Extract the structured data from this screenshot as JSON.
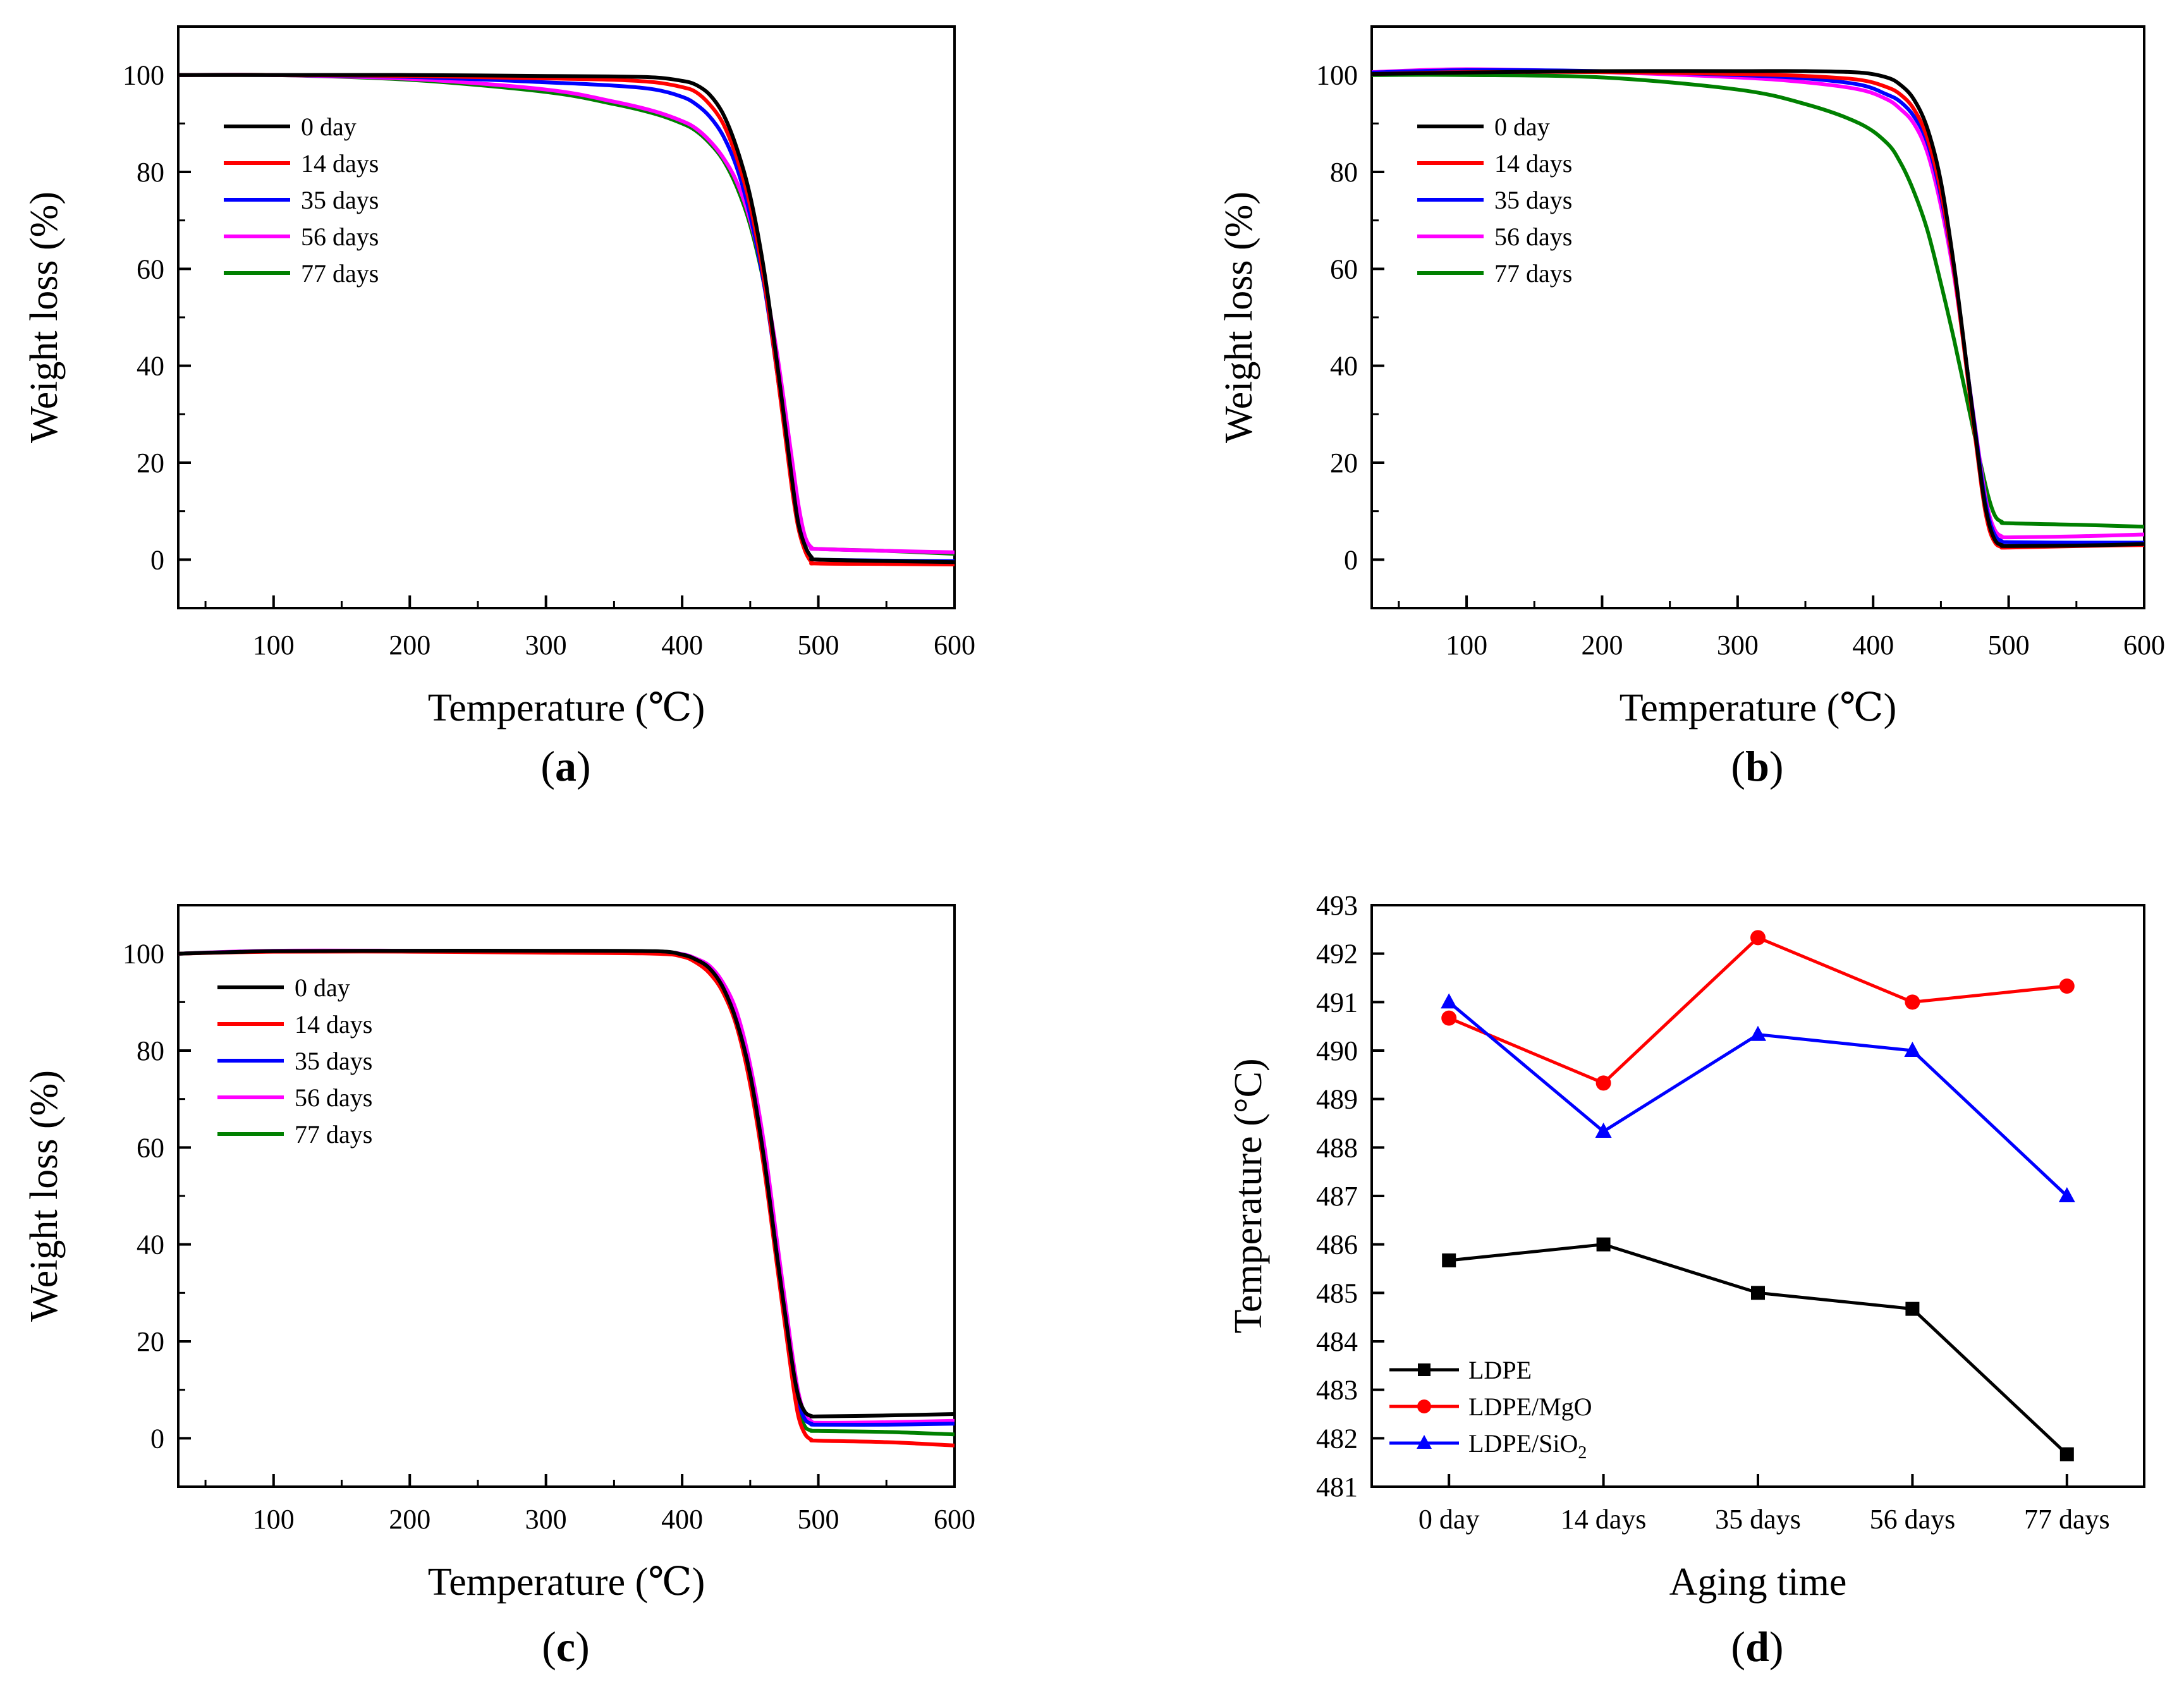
{
  "figure": {
    "panels": [
      "a",
      "b",
      "c",
      "d"
    ]
  },
  "colors": {
    "0 day": "#000000",
    "14 days": "#ff0000",
    "35 days": "#0000ff",
    "56 days": "#ff00ff",
    "77 days": "#008000",
    "LDPE": "#000000",
    "LDPE/MgO": "#ff0000",
    "LDPE/SiO2": "#0000ff"
  },
  "chart_data": [
    {
      "id": "a",
      "panel_label": "a",
      "type": "line",
      "title": "",
      "xlabel": "Temperature (℃)",
      "ylabel": "Weight loss (%)",
      "xlim": [
        30,
        600
      ],
      "ylim": [
        -10,
        110
      ],
      "xticks": [
        100,
        200,
        300,
        400,
        500,
        600
      ],
      "yticks": [
        0,
        20,
        40,
        60,
        80,
        100
      ],
      "legend": [
        "0 day",
        "14 days",
        "35 days",
        "56 days",
        "77 days"
      ],
      "legend_position": "top-left",
      "series": [
        {
          "name": "0 day",
          "x": [
            30,
            100,
            200,
            300,
            350,
            380,
            400,
            410,
            420,
            430,
            440,
            450,
            460,
            470,
            480,
            485,
            490,
            495,
            500,
            550,
            600
          ],
          "y": [
            100,
            100,
            100,
            99.8,
            99.7,
            99.5,
            98.8,
            98,
            96,
            92,
            85,
            75,
            60,
            40,
            18,
            8,
            3,
            0.5,
            0,
            -0.3,
            -0.5
          ]
        },
        {
          "name": "14 days",
          "x": [
            30,
            100,
            200,
            300,
            350,
            380,
            400,
            410,
            420,
            430,
            440,
            450,
            460,
            470,
            480,
            485,
            490,
            495,
            500,
            550,
            600
          ],
          "y": [
            100,
            100,
            99.8,
            99.3,
            99,
            98.5,
            97.5,
            96.5,
            94,
            90,
            83,
            73,
            58,
            38,
            16,
            7,
            2,
            -0.5,
            -0.8,
            -0.9,
            -1
          ]
        },
        {
          "name": "35 days",
          "x": [
            30,
            100,
            200,
            300,
            350,
            380,
            400,
            410,
            420,
            430,
            440,
            450,
            460,
            470,
            480,
            485,
            490,
            495,
            500,
            550,
            600
          ],
          "y": [
            100,
            100,
            99.6,
            98.5,
            97.8,
            97,
            95.5,
            94,
            91.5,
            87.5,
            81,
            71,
            57,
            38,
            17,
            8,
            3,
            0.5,
            0,
            -0.2,
            -0.3
          ]
        },
        {
          "name": "56 days",
          "x": [
            30,
            100,
            200,
            300,
            350,
            380,
            400,
            410,
            420,
            430,
            440,
            450,
            460,
            470,
            480,
            485,
            490,
            495,
            500,
            550,
            600
          ],
          "y": [
            100,
            100,
            99.2,
            97,
            94.5,
            92.5,
            90.5,
            89,
            86.5,
            83,
            78,
            70,
            58,
            42,
            22,
            12,
            5,
            2.5,
            2.2,
            1.8,
            1.5
          ]
        },
        {
          "name": "77 days",
          "x": [
            30,
            100,
            200,
            300,
            350,
            380,
            400,
            410,
            420,
            430,
            440,
            450,
            460,
            470,
            480,
            485,
            490,
            495,
            500,
            550,
            600
          ],
          "y": [
            100,
            100,
            99,
            96.5,
            94,
            92,
            90,
            88.5,
            86,
            82.5,
            77,
            69,
            57,
            40,
            20,
            10,
            4.5,
            2.5,
            2.2,
            1.8,
            1.2
          ]
        }
      ]
    },
    {
      "id": "b",
      "panel_label": "b",
      "type": "line",
      "title": "",
      "xlabel": "Temperature (℃)",
      "ylabel": "Weight loss (%)",
      "xlim": [
        30,
        600
      ],
      "ylim": [
        -10,
        110
      ],
      "xticks": [
        100,
        200,
        300,
        400,
        500,
        600
      ],
      "yticks": [
        0,
        20,
        40,
        60,
        80,
        100
      ],
      "legend": [
        "0 day",
        "14 days",
        "35 days",
        "56 days",
        "77 days"
      ],
      "legend_position": "top-left",
      "series": [
        {
          "name": "0 day",
          "x": [
            30,
            100,
            200,
            300,
            350,
            390,
            410,
            420,
            430,
            440,
            450,
            460,
            470,
            480,
            485,
            490,
            495,
            500,
            550,
            600
          ],
          "y": [
            100.2,
            100.5,
            100.8,
            100.8,
            100.8,
            100.5,
            99.5,
            98,
            95,
            89,
            78,
            60,
            38,
            16,
            8,
            4,
            3,
            2.8,
            2.9,
            3.2
          ]
        },
        {
          "name": "14 days",
          "x": [
            30,
            100,
            200,
            300,
            350,
            390,
            410,
            420,
            430,
            440,
            450,
            460,
            470,
            480,
            485,
            490,
            495,
            500,
            550,
            600
          ],
          "y": [
            100.2,
            100.6,
            100.6,
            100.2,
            99.8,
            99,
            97.5,
            96,
            93,
            87,
            76,
            59,
            37,
            15,
            7,
            3.5,
            2.6,
            2.5,
            2.8,
            3
          ]
        },
        {
          "name": "35 days",
          "x": [
            30,
            100,
            200,
            300,
            350,
            390,
            410,
            420,
            430,
            440,
            450,
            460,
            470,
            480,
            485,
            490,
            495,
            500,
            550,
            600
          ],
          "y": [
            100.5,
            101,
            100.8,
            100,
            99.3,
            98,
            96,
            94.5,
            91.5,
            86,
            75,
            59,
            38,
            17,
            9,
            5,
            3.8,
            3.6,
            3.5,
            3.5
          ]
        },
        {
          "name": "56 days",
          "x": [
            30,
            100,
            200,
            300,
            350,
            390,
            410,
            420,
            430,
            440,
            450,
            460,
            470,
            480,
            485,
            490,
            495,
            500,
            550,
            600
          ],
          "y": [
            100.6,
            101.2,
            100.6,
            99.5,
            98.5,
            97,
            95,
            93,
            90,
            84,
            73,
            58,
            38,
            18,
            10,
            6,
            4.8,
            4.6,
            4.8,
            5.2
          ]
        },
        {
          "name": "77 days",
          "x": [
            30,
            100,
            200,
            300,
            350,
            390,
            410,
            420,
            430,
            440,
            450,
            460,
            470,
            480,
            485,
            490,
            495,
            500,
            550,
            600
          ],
          "y": [
            100,
            100,
            99.5,
            97,
            94,
            90,
            86,
            82,
            76,
            68,
            57,
            45,
            32,
            19,
            13,
            9,
            7.8,
            7.5,
            7.2,
            6.8
          ]
        }
      ]
    },
    {
      "id": "c",
      "panel_label": "c",
      "type": "line",
      "title": "",
      "xlabel": "Temperature (℃)",
      "ylabel": "Weight loss (%)",
      "xlim": [
        30,
        600
      ],
      "ylim": [
        -10,
        110
      ],
      "xticks": [
        100,
        200,
        300,
        400,
        500,
        600
      ],
      "yticks": [
        0,
        20,
        40,
        60,
        80,
        100
      ],
      "legend": [
        "0 day",
        "14 days",
        "35 days",
        "56 days",
        "77 days"
      ],
      "legend_position": "top-left",
      "series": [
        {
          "name": "0 day",
          "x": [
            30,
            100,
            200,
            300,
            380,
            400,
            410,
            420,
            430,
            440,
            450,
            460,
            470,
            480,
            485,
            490,
            495,
            500,
            550,
            600
          ],
          "y": [
            100,
            100.5,
            100.6,
            100.6,
            100.5,
            99.8,
            98.8,
            97,
            93,
            86,
            75,
            58,
            37,
            17,
            9,
            5.5,
            4.6,
            4.5,
            4.7,
            5
          ]
        },
        {
          "name": "14 days",
          "x": [
            30,
            100,
            200,
            300,
            380,
            400,
            410,
            420,
            430,
            440,
            450,
            460,
            470,
            480,
            485,
            490,
            495,
            500,
            550,
            600
          ],
          "y": [
            100,
            100.4,
            100.4,
            100.2,
            100,
            99.4,
            98.2,
            96,
            92,
            85,
            73,
            56,
            35,
            14,
            5,
            1,
            -0.3,
            -0.5,
            -0.8,
            -1.5
          ]
        },
        {
          "name": "35 days",
          "x": [
            30,
            100,
            200,
            300,
            380,
            400,
            410,
            420,
            430,
            440,
            450,
            460,
            470,
            480,
            485,
            490,
            495,
            500,
            550,
            600
          ],
          "y": [
            100,
            100.5,
            100.5,
            100.5,
            100.4,
            99.8,
            98.8,
            97,
            93,
            86,
            75,
            58,
            37,
            16,
            8,
            4,
            3,
            2.8,
            2.8,
            3
          ]
        },
        {
          "name": "56 days",
          "x": [
            30,
            100,
            200,
            300,
            380,
            400,
            410,
            420,
            430,
            440,
            450,
            460,
            470,
            480,
            485,
            490,
            495,
            500,
            550,
            600
          ],
          "y": [
            100,
            100.6,
            100.6,
            100.5,
            100.4,
            99.9,
            99,
            97.5,
            94,
            88,
            77,
            61,
            40,
            19,
            10,
            5,
            3.5,
            3.2,
            3.3,
            3.6
          ]
        },
        {
          "name": "77 days",
          "x": [
            30,
            100,
            200,
            300,
            380,
            400,
            410,
            420,
            430,
            440,
            450,
            460,
            470,
            480,
            485,
            490,
            495,
            500,
            550,
            600
          ],
          "y": [
            100,
            100.5,
            100.6,
            100.5,
            100.3,
            99.6,
            98.5,
            96.5,
            92.5,
            85.5,
            74,
            57,
            36,
            15,
            6.5,
            2.5,
            1.6,
            1.5,
            1.3,
            0.8
          ]
        }
      ]
    },
    {
      "id": "d",
      "panel_label": "d",
      "type": "line",
      "title": "",
      "xlabel": "Aging time",
      "ylabel": "Temperature (°C)",
      "categories": [
        "0 day",
        "14 days",
        "35 days",
        "56 days",
        "77 days"
      ],
      "ylim": [
        481,
        493
      ],
      "yticks": [
        481,
        482,
        483,
        484,
        485,
        486,
        487,
        488,
        489,
        490,
        491,
        492,
        493
      ],
      "legend": [
        "LDPE",
        "LDPE/MgO",
        "LDPE/SiO2"
      ],
      "legend_position": "bottom-left",
      "series": [
        {
          "name": "LDPE",
          "marker": "square",
          "values": [
            485.67,
            486.0,
            485.0,
            484.67,
            481.67
          ]
        },
        {
          "name": "LDPE/MgO",
          "marker": "circle",
          "values": [
            490.67,
            489.33,
            492.33,
            491.0,
            491.33
          ]
        },
        {
          "name": "LDPE/SiO2",
          "marker": "triangle",
          "values": [
            491.0,
            488.33,
            490.33,
            490.0,
            487.0
          ]
        }
      ]
    }
  ]
}
